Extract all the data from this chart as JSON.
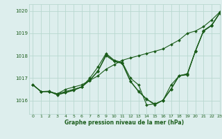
{
  "title": "Graphe pression niveau de la mer (hPa)",
  "bg_color": "#ddeeed",
  "grid_color": "#b8d8d0",
  "line_color": "#1a5c1a",
  "marker_color": "#1a5c1a",
  "xlim": [
    -0.5,
    23
  ],
  "ylim": [
    1015.4,
    1020.3
  ],
  "yticks": [
    1016,
    1017,
    1018,
    1019,
    1020
  ],
  "xticks": [
    0,
    1,
    2,
    3,
    4,
    5,
    6,
    7,
    8,
    9,
    10,
    11,
    12,
    13,
    14,
    15,
    16,
    17,
    18,
    19,
    20,
    21,
    22,
    23
  ],
  "series": [
    {
      "x": [
        0,
        1,
        2,
        3,
        4,
        5,
        6,
        7,
        8,
        9,
        10,
        11,
        12,
        13,
        14,
        15,
        16,
        17,
        18,
        19,
        20,
        21,
        22,
        23
      ],
      "y": [
        1016.7,
        1016.4,
        1016.4,
        1016.3,
        1016.5,
        1016.6,
        1016.7,
        1016.9,
        1017.1,
        1017.4,
        1017.6,
        1017.8,
        1017.9,
        1018.0,
        1018.1,
        1018.2,
        1018.3,
        1018.5,
        1018.7,
        1019.0,
        1019.1,
        1019.3,
        1019.6,
        1019.95
      ]
    },
    {
      "x": [
        0,
        1,
        2,
        3,
        4,
        5,
        6,
        7,
        8,
        9,
        10,
        11,
        12,
        13,
        14,
        15,
        16,
        17,
        18,
        19,
        20,
        21,
        22,
        23
      ],
      "y": [
        1016.7,
        1016.4,
        1016.4,
        1016.3,
        1016.4,
        1016.5,
        1016.6,
        1017.0,
        1017.5,
        1018.1,
        1017.8,
        1017.7,
        1017.0,
        1016.7,
        1015.8,
        1015.85,
        1016.0,
        1016.7,
        1017.1,
        1017.2,
        1018.2,
        1019.1,
        1019.35,
        1019.9
      ]
    },
    {
      "x": [
        0,
        1,
        2,
        3,
        4,
        5,
        6,
        7,
        8,
        9,
        10,
        11,
        12,
        13,
        14,
        15,
        16,
        17,
        18,
        19,
        20,
        21,
        22,
        23
      ],
      "y": [
        1016.7,
        1016.4,
        1016.4,
        1016.25,
        1016.35,
        1016.45,
        1016.6,
        1016.9,
        1017.3,
        1018.0,
        1017.75,
        1017.65,
        1016.85,
        1016.4,
        1016.05,
        1015.85,
        1016.0,
        1016.5,
        1017.1,
        1017.15,
        1018.2,
        1019.1,
        1019.35,
        1019.9
      ]
    },
    {
      "x": [
        0,
        1,
        2,
        3,
        4,
        5,
        6,
        7,
        8,
        9,
        10,
        11,
        12,
        13,
        14,
        15,
        16,
        17,
        18,
        19,
        20,
        21,
        22,
        23
      ],
      "y": [
        1016.7,
        1016.4,
        1016.42,
        1016.27,
        1016.37,
        1016.47,
        1016.62,
        1016.92,
        1017.32,
        1018.05,
        1017.77,
        1017.67,
        1016.87,
        1016.42,
        1016.07,
        1015.8,
        1016.02,
        1016.52,
        1017.12,
        1017.17,
        1018.22,
        1019.12,
        1019.37,
        1019.92
      ]
    }
  ]
}
